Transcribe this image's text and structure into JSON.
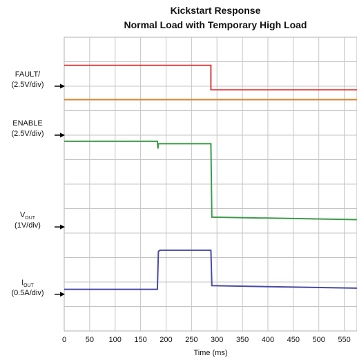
{
  "chart_data": {
    "type": "line",
    "title": [
      "Kickstart Response",
      "Normal Load with Temporary High Load"
    ],
    "xlabel": "Time (ms)",
    "xlim": [
      0,
      575
    ],
    "x_ticks": [
      0,
      50,
      100,
      150,
      200,
      250,
      300,
      350,
      400,
      450,
      500,
      550
    ],
    "grid": true,
    "channels": [
      {
        "name": "FAULT/",
        "scale": "(2.5V/div)"
      },
      {
        "name": "ENABLE",
        "scale": "(2.5V/div)"
      },
      {
        "name": "V",
        "sub": "OUT",
        "scale": "(1V/div)"
      },
      {
        "name": "I",
        "sub": "OUT",
        "scale": "(0.5A/div)"
      }
    ],
    "series": [
      {
        "color": "#e0403c",
        "points": [
          [
            0,
            7.6
          ],
          [
            288,
            7.6
          ],
          [
            288,
            6.6
          ],
          [
            575,
            6.6
          ]
        ]
      },
      {
        "color": "#d9822b",
        "points": [
          [
            0,
            6.2
          ],
          [
            575,
            6.2
          ]
        ]
      },
      {
        "color": "#3c9a48",
        "points": [
          [
            0,
            4.5
          ],
          [
            183,
            4.5
          ],
          [
            184,
            4.2
          ],
          [
            185,
            4.4
          ],
          [
            288,
            4.4
          ],
          [
            290,
            1.4
          ],
          [
            575,
            1.3
          ]
        ]
      },
      {
        "color": "#4848a8",
        "points": [
          [
            0,
            -1.55
          ],
          [
            183,
            -1.55
          ],
          [
            185,
            0.0
          ],
          [
            188,
            0.05
          ],
          [
            288,
            0.05
          ],
          [
            290,
            -1.4
          ],
          [
            575,
            -1.5
          ]
        ]
      }
    ]
  }
}
